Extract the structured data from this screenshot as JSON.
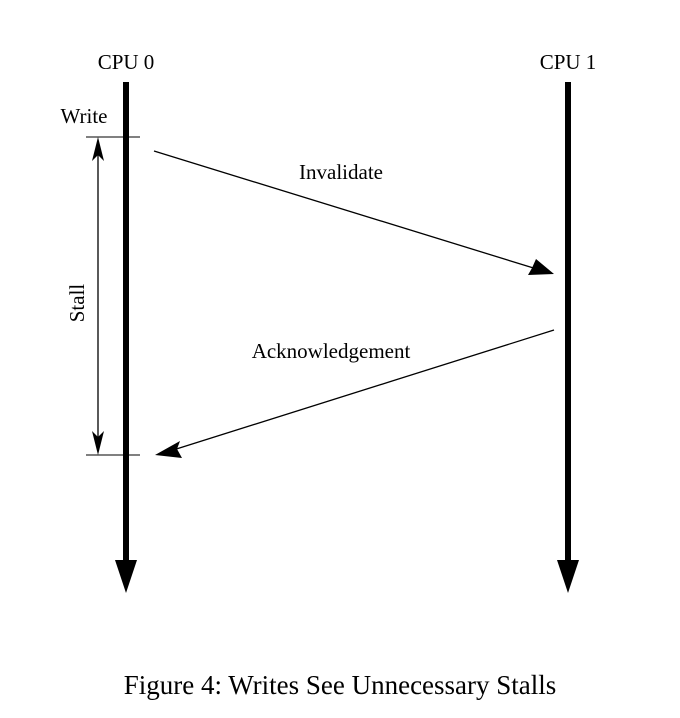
{
  "diagram": {
    "cpu0_label": "CPU 0",
    "cpu1_label": "CPU 1",
    "write_label": "Write",
    "stall_label": "Stall",
    "invalidate_label": "Invalidate",
    "ack_label": "Acknowledgement"
  },
  "caption": "Figure 4: Writes See Unnecessary Stalls",
  "colors": {
    "ink": "#000000",
    "background": "#ffffff"
  }
}
